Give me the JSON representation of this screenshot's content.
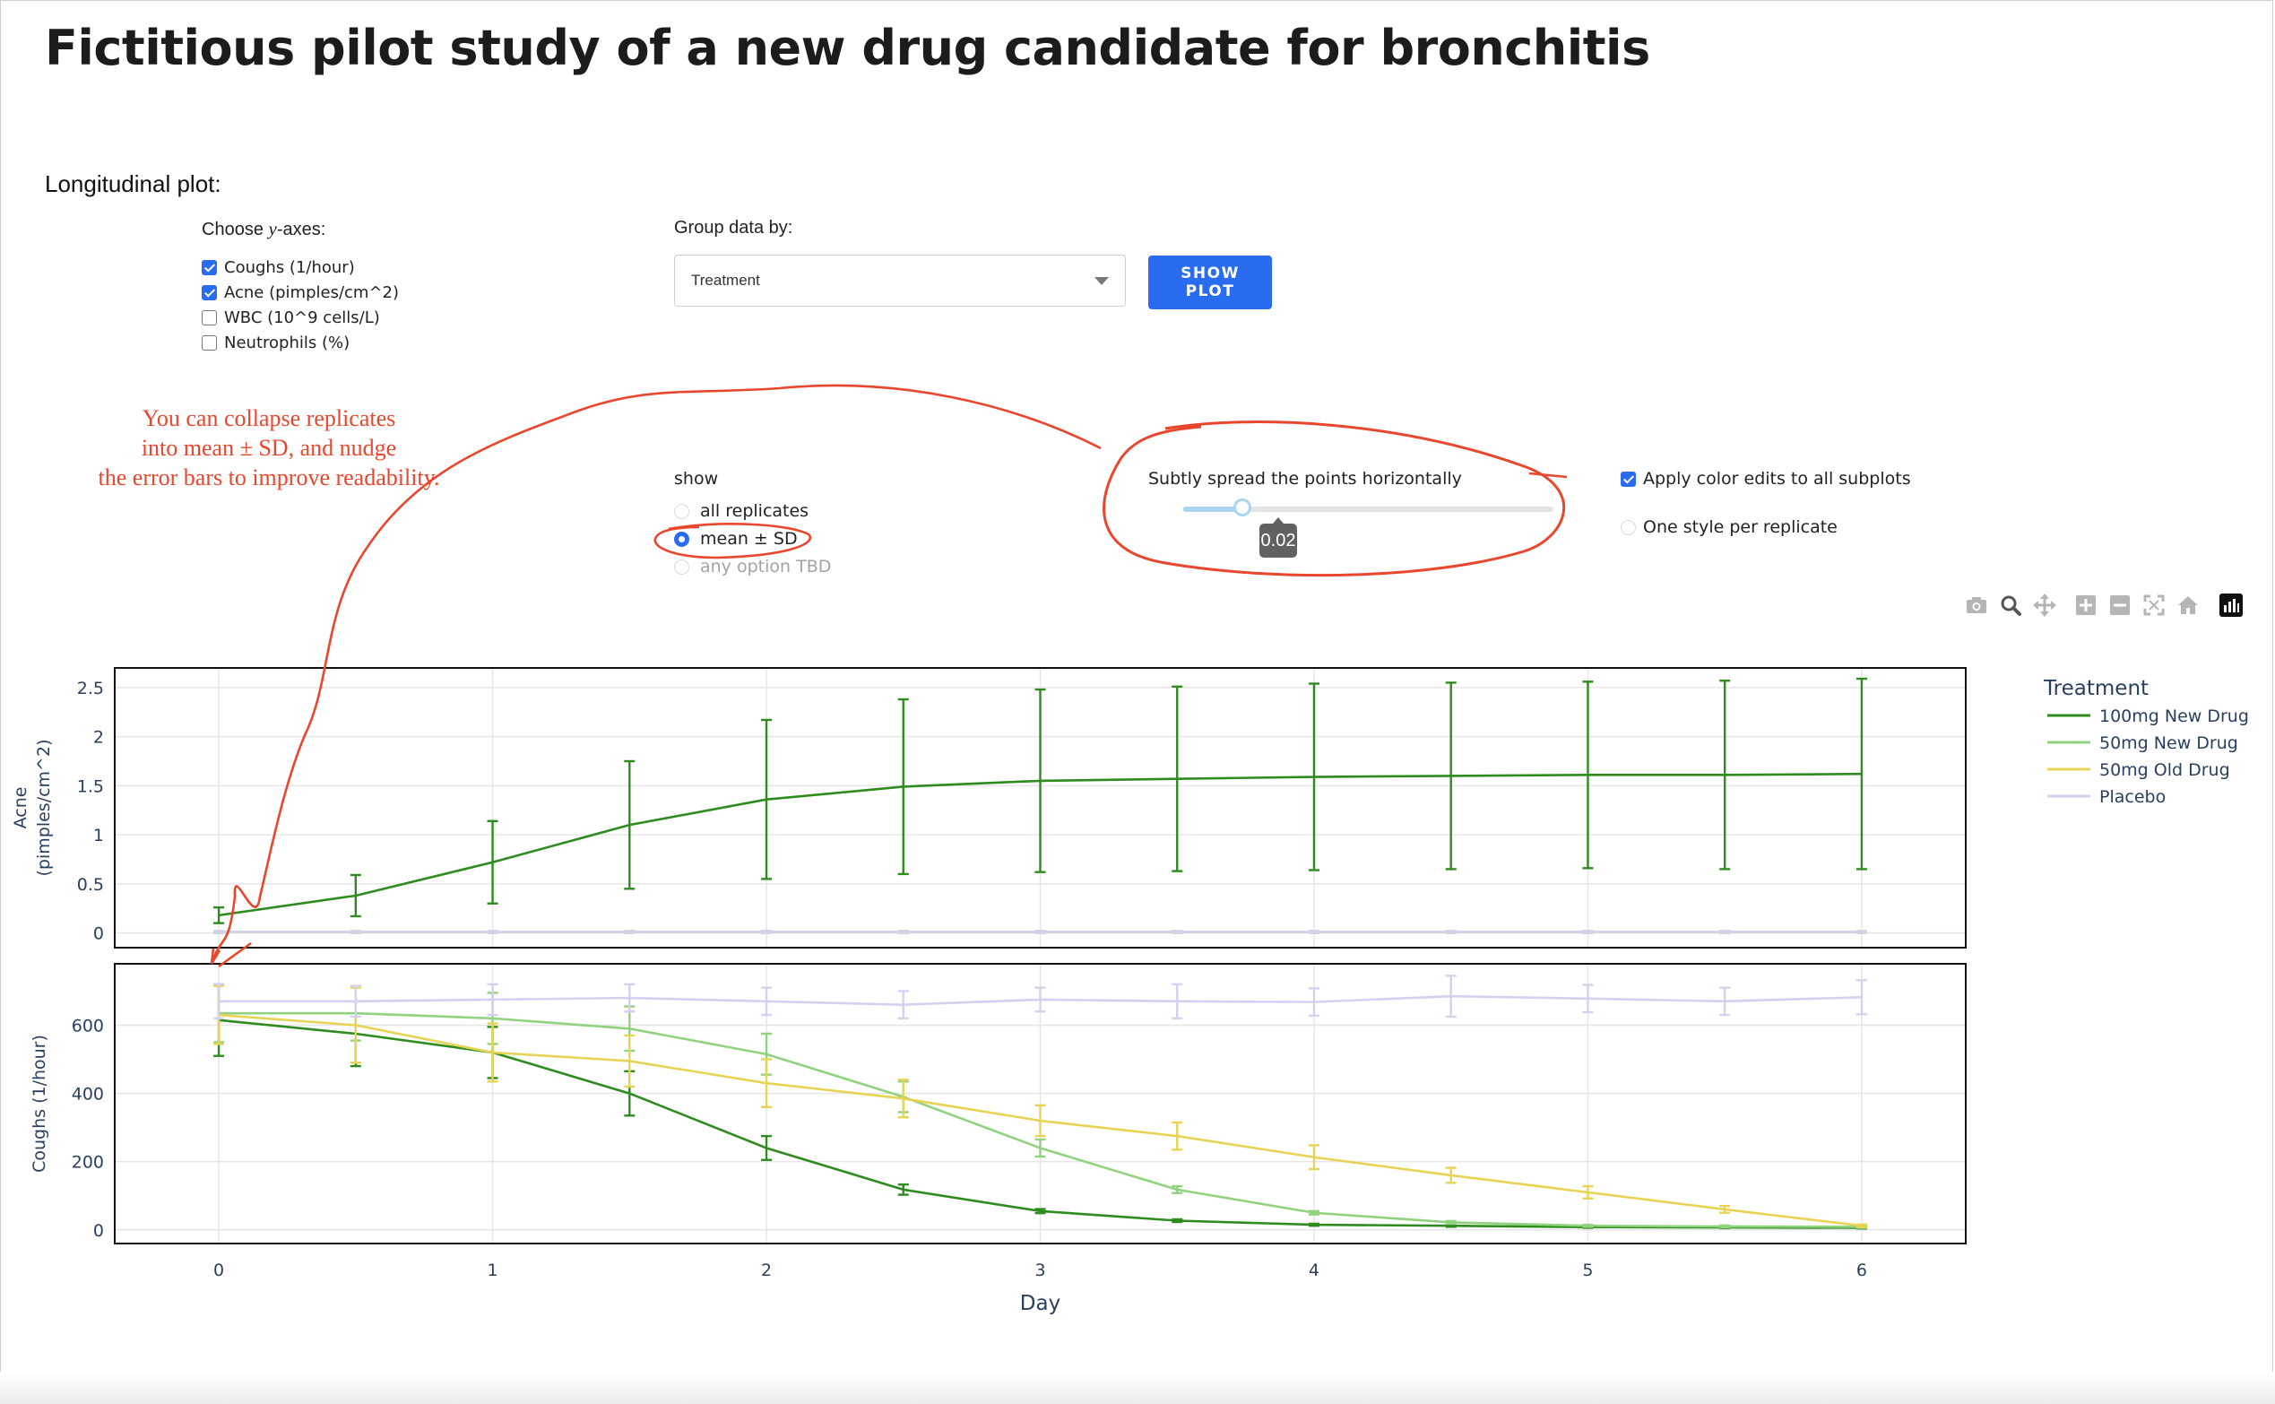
{
  "page": {
    "title": "Fictitious pilot study of a new drug candidate for bronchitis",
    "section_label": "Longitudinal plot:"
  },
  "y_axes": {
    "label_prefix": "Choose ",
    "label_var": "y",
    "label_suffix": "-axes:",
    "options": [
      {
        "label": "Coughs (1/hour)",
        "checked": true
      },
      {
        "label": "Acne (pimples/cm^2)",
        "checked": true
      },
      {
        "label": "WBC (10^9 cells/L)",
        "checked": false
      },
      {
        "label": "Neutrophils (%)",
        "checked": false
      }
    ]
  },
  "group_by": {
    "label": "Group data by:",
    "selected": "Treatment"
  },
  "show_plot_label": "SHOW PLOT",
  "show": {
    "label": "show",
    "options": [
      {
        "label": "all replicates",
        "selected": false,
        "disabled": false
      },
      {
        "label": "mean ± SD",
        "selected": true,
        "disabled": false
      },
      {
        "label": "any option TBD",
        "selected": false,
        "disabled": true
      }
    ]
  },
  "spread_slider": {
    "label": "Subtly spread the points horizontally",
    "value": 0.02,
    "value_label": "0.02",
    "fraction": 0.16
  },
  "options_right": [
    {
      "label": "Apply color edits to all subplots",
      "checked": true
    },
    {
      "label": "One style per replicate",
      "checked": false
    }
  ],
  "modebar_icons": [
    "camera-icon",
    "zoom-icon",
    "pan-icon",
    "zoom-in-icon",
    "zoom-out-icon",
    "autoscale-icon",
    "home-icon",
    "plotly-logo-icon"
  ],
  "annotation": {
    "lines": [
      "You can collapse replicates",
      "into mean ± SD, and nudge",
      "the error bars to improve readability."
    ],
    "color": "#e8472e"
  },
  "colors": {
    "primary_button": "#2a6cf0",
    "100mg New Drug": "#2e8b1e",
    "50mg New Drug": "#90d27e",
    "50mg Old Drug": "#e8d454",
    "Placebo": "#d6d0f0"
  },
  "chart_data": [
    {
      "type": "line",
      "ylabel_lines": [
        "Acne",
        "(pimples/cm^2)"
      ],
      "xlabel": "",
      "ylim": [
        -0.15,
        2.7
      ],
      "xlim": [
        -0.38,
        6.38
      ],
      "yticks": [
        0,
        0.5,
        1,
        1.5,
        2,
        2.5
      ],
      "ytick_labels": [
        "0",
        "0.5",
        "1",
        "1.5",
        "2",
        "2.5"
      ],
      "grid": true,
      "x": [
        0,
        0.5,
        1,
        1.5,
        2,
        2.5,
        3,
        3.5,
        4,
        4.5,
        5,
        5.5,
        6
      ],
      "series": [
        {
          "name": "100mg New Drug",
          "y": [
            0.18,
            0.38,
            0.72,
            1.1,
            1.36,
            1.49,
            1.55,
            1.57,
            1.59,
            1.6,
            1.61,
            1.61,
            1.62
          ],
          "sd": [
            0.08,
            0.21,
            0.42,
            0.65,
            0.81,
            0.89,
            0.93,
            0.94,
            0.95,
            0.95,
            0.95,
            0.96,
            0.97
          ]
        },
        {
          "name": "50mg New Drug",
          "y": [
            0.01,
            0.01,
            0.01,
            0.01,
            0.01,
            0.01,
            0.01,
            0.01,
            0.01,
            0.01,
            0.01,
            0.01,
            0.01
          ],
          "sd": [
            0.01,
            0.01,
            0.01,
            0.01,
            0.01,
            0.01,
            0.01,
            0.01,
            0.01,
            0.01,
            0.01,
            0.01,
            0.01
          ]
        },
        {
          "name": "50mg Old Drug",
          "y": [
            0.01,
            0.01,
            0.01,
            0.01,
            0.01,
            0.01,
            0.01,
            0.01,
            0.01,
            0.01,
            0.01,
            0.01,
            0.01
          ],
          "sd": [
            0.01,
            0.01,
            0.01,
            0.01,
            0.01,
            0.01,
            0.01,
            0.01,
            0.01,
            0.01,
            0.01,
            0.01,
            0.01
          ]
        },
        {
          "name": "Placebo",
          "y": [
            0.01,
            0.01,
            0.01,
            0.01,
            0.01,
            0.01,
            0.01,
            0.01,
            0.01,
            0.01,
            0.01,
            0.01,
            0.01
          ],
          "sd": [
            0.01,
            0.01,
            0.01,
            0.01,
            0.01,
            0.01,
            0.01,
            0.01,
            0.01,
            0.01,
            0.01,
            0.01,
            0.01
          ]
        }
      ]
    },
    {
      "type": "line",
      "ylabel_lines": [
        "Coughs (1/hour)"
      ],
      "xlabel": "Day",
      "ylim": [
        -40,
        780
      ],
      "xlim": [
        -0.38,
        6.38
      ],
      "yticks": [
        0,
        200,
        400,
        600
      ],
      "ytick_labels": [
        "0",
        "200",
        "400",
        "600"
      ],
      "xticks": [
        0,
        1,
        2,
        3,
        4,
        5,
        6
      ],
      "xtick_labels": [
        "0",
        "1",
        "2",
        "3",
        "4",
        "5",
        "6"
      ],
      "grid": true,
      "x": [
        0,
        0.5,
        1,
        1.5,
        2,
        2.5,
        3,
        3.5,
        4,
        4.5,
        5,
        5.5,
        6
      ],
      "series": [
        {
          "name": "100mg New Drug",
          "y": [
            615,
            575,
            520,
            400,
            240,
            118,
            55,
            27,
            15,
            12,
            8,
            7,
            6
          ],
          "sd": [
            105,
            95,
            75,
            65,
            35,
            15,
            6,
            4,
            3,
            3,
            2,
            2,
            2
          ]
        },
        {
          "name": "50mg New Drug",
          "y": [
            635,
            635,
            620,
            590,
            515,
            390,
            240,
            118,
            50,
            22,
            12,
            10,
            9
          ],
          "sd": [
            85,
            80,
            75,
            65,
            60,
            45,
            25,
            10,
            5,
            4,
            3,
            3,
            3
          ]
        },
        {
          "name": "50mg Old Drug",
          "y": [
            630,
            600,
            520,
            495,
            430,
            385,
            320,
            275,
            213,
            160,
            110,
            60,
            12
          ],
          "sd": [
            85,
            110,
            85,
            75,
            70,
            55,
            45,
            40,
            35,
            22,
            18,
            10,
            4
          ]
        },
        {
          "name": "Placebo",
          "y": [
            670,
            670,
            675,
            680,
            670,
            660,
            675,
            670,
            668,
            685,
            678,
            670,
            682
          ],
          "sd": [
            50,
            45,
            45,
            40,
            40,
            40,
            35,
            50,
            40,
            60,
            40,
            40,
            50
          ]
        }
      ]
    }
  ],
  "legend": {
    "title": "Treatment",
    "items": [
      "100mg New Drug",
      "50mg New Drug",
      "50mg Old Drug",
      "Placebo"
    ]
  }
}
